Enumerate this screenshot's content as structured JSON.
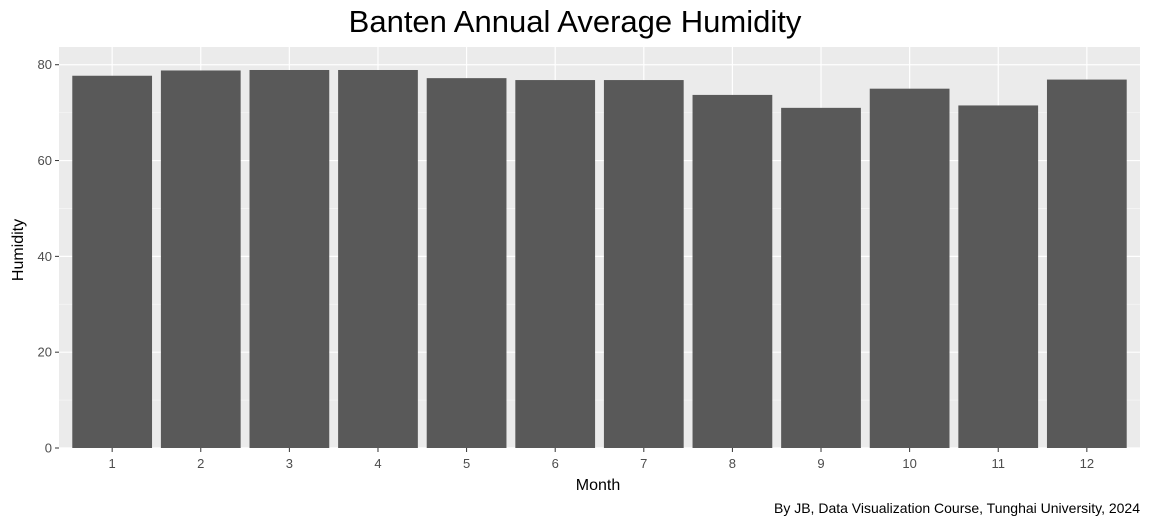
{
  "chart_data": {
    "type": "bar",
    "title": "Banten Annual Average Humidity",
    "xlabel": "Month",
    "ylabel": "Humidity",
    "caption": "By JB, Data Visualization Course, Tunghai University, 2024",
    "categories": [
      "1",
      "2",
      "3",
      "4",
      "5",
      "6",
      "7",
      "8",
      "9",
      "10",
      "11",
      "12"
    ],
    "values": [
      77.7,
      78.8,
      78.9,
      78.9,
      77.2,
      76.8,
      76.8,
      73.7,
      71.0,
      75.0,
      71.5,
      76.9
    ],
    "yticks": [
      0,
      20,
      40,
      60,
      80
    ],
    "ylim": [
      0,
      83.7
    ],
    "grid": true,
    "legend": "none",
    "colors": {
      "bar": "#595959",
      "panel": "#ebebeb",
      "grid_major": "#ffffff",
      "grid_minor": "#f5f5f5"
    }
  }
}
